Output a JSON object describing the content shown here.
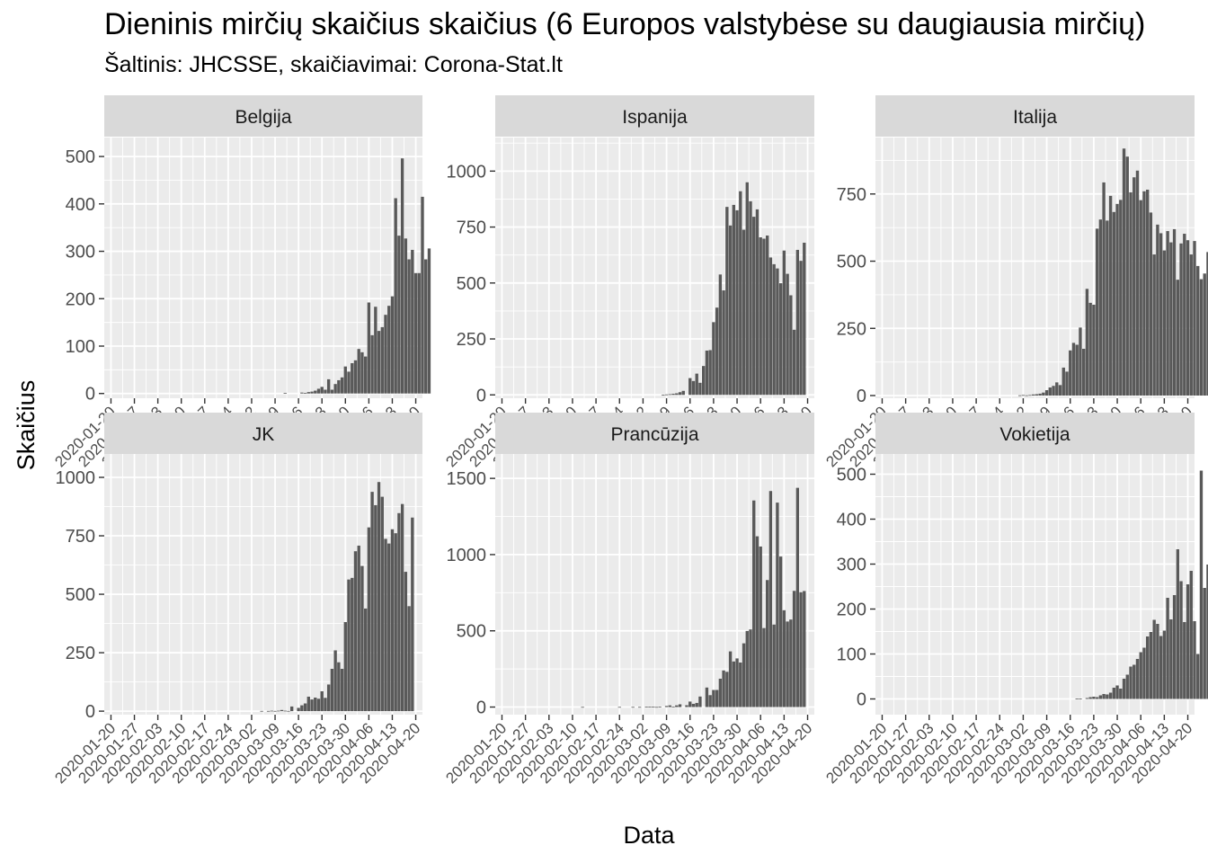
{
  "chart_data": {
    "type": "bar",
    "title": "Dieninis mirčių skaičius skaičius (6 Europos valstybėse su daugiausia mirčių)",
    "subtitle": "Šaltinis: JHCSSE, skaičiavimai: Corona-Stat.lt",
    "xlabel": "Data",
    "ylabel": "Skaičius",
    "x_range": [
      "2020-01-18",
      "2020-04-22"
    ],
    "x_ticks": [
      "2020-01-20",
      "2020-01-27",
      "2020-02-03",
      "2020-02-10",
      "2020-02-17",
      "2020-02-24",
      "2020-03-02",
      "2020-03-09",
      "2020-03-16",
      "2020-03-23",
      "2020-03-30",
      "2020-04-06",
      "2020-04-13",
      "2020-04-20"
    ],
    "bar_start": "2020-01-22",
    "bar_color": "#595959",
    "panel_background": "#ebebeb",
    "strip_background": "#d9d9d9",
    "grid": true,
    "panels": [
      {
        "name": "Belgija",
        "ylim": [
          -10,
          540
        ],
        "y_ticks": [
          0,
          100,
          200,
          300,
          400,
          500
        ],
        "values": [
          0,
          0,
          0,
          0,
          0,
          0,
          0,
          0,
          0,
          0,
          0,
          0,
          0,
          0,
          0,
          0,
          0,
          0,
          0,
          0,
          0,
          0,
          0,
          0,
          0,
          0,
          0,
          0,
          0,
          0,
          0,
          0,
          0,
          0,
          0,
          0,
          0,
          0,
          0,
          0,
          0,
          0,
          0,
          0,
          0,
          0,
          0,
          0,
          0,
          0,
          1,
          0,
          0,
          0,
          0,
          2,
          1,
          3,
          4,
          6,
          10,
          14,
          8,
          30,
          8,
          20,
          28,
          34,
          57,
          46,
          64,
          70,
          94,
          87,
          78,
          192,
          123,
          183,
          132,
          140,
          166,
          185,
          205,
          412,
          333,
          496,
          327,
          283,
          303,
          254,
          254,
          415,
          283,
          306
        ]
      },
      {
        "name": "Ispanija",
        "ylim": [
          -15,
          1150
        ],
        "y_ticks": [
          0,
          250,
          500,
          750,
          1000
        ],
        "values": [
          0,
          0,
          0,
          0,
          0,
          0,
          0,
          0,
          0,
          0,
          0,
          0,
          0,
          0,
          0,
          0,
          0,
          0,
          0,
          0,
          0,
          0,
          0,
          0,
          0,
          0,
          0,
          0,
          0,
          0,
          0,
          0,
          0,
          0,
          0,
          0,
          0,
          0,
          0,
          0,
          0,
          0,
          0,
          0,
          0,
          0,
          1,
          2,
          3,
          5,
          7,
          12,
          18,
          0,
          75,
          62,
          95,
          54,
          129,
          198,
          200,
          325,
          390,
          538,
          467,
          840,
          757,
          849,
          825,
          910,
          738,
          950,
          865,
          796,
          829,
          704,
          698,
          712,
          614,
          584,
          565,
          499,
          645,
          541,
          445,
          291,
          648,
          599,
          680
        ]
      },
      {
        "name": "Italija",
        "ylim": [
          -10,
          960
        ],
        "y_ticks": [
          0,
          250,
          500,
          750
        ],
        "values": [
          0,
          0,
          0,
          0,
          0,
          0,
          0,
          0,
          0,
          0,
          0,
          0,
          0,
          0,
          0,
          0,
          0,
          0,
          0,
          0,
          0,
          0,
          0,
          0,
          0,
          0,
          0,
          0,
          0,
          0,
          0,
          0,
          0,
          0,
          0,
          0,
          0,
          0,
          0,
          1,
          2,
          1,
          2,
          4,
          5,
          7,
          11,
          20,
          30,
          36,
          49,
          39,
          104,
          89,
          168,
          196,
          189,
          253,
          174,
          397,
          345,
          338,
          621,
          655,
          793,
          651,
          743,
          683,
          713,
          728,
          919,
          889,
          756,
          812,
          837,
          727,
          760,
          766,
          681,
          525,
          636,
          604,
          540,
          612,
          570,
          619,
          431,
          566,
          602,
          578,
          525,
          575,
          482,
          433,
          454,
          534
        ]
      },
      {
        "name": "JK",
        "ylim": [
          -15,
          1100
        ],
        "y_ticks": [
          0,
          250,
          500,
          750,
          1000
        ],
        "values": [
          0,
          0,
          0,
          0,
          0,
          0,
          0,
          0,
          0,
          0,
          0,
          0,
          0,
          0,
          0,
          0,
          0,
          0,
          0,
          0,
          0,
          0,
          0,
          0,
          0,
          0,
          0,
          0,
          0,
          0,
          0,
          0,
          0,
          0,
          0,
          0,
          0,
          0,
          0,
          0,
          0,
          0,
          0,
          1,
          0,
          1,
          2,
          1,
          2,
          5,
          2,
          1,
          20,
          0,
          14,
          25,
          33,
          62,
          50,
          58,
          53,
          85,
          57,
          114,
          181,
          260,
          209,
          181,
          381,
          563,
          570,
          684,
          708,
          621,
          439,
          786,
          938,
          881,
          980,
          917,
          737,
          717,
          778,
          761,
          847,
          886,
          596,
          449,
          828
        ]
      },
      {
        "name": "Prancūzija",
        "ylim": [
          -50,
          1660
        ],
        "y_ticks": [
          0,
          500,
          1000,
          1500
        ],
        "values": [
          0,
          0,
          0,
          0,
          0,
          0,
          0,
          0,
          0,
          0,
          0,
          0,
          0,
          0,
          0,
          0,
          0,
          0,
          0,
          0,
          0,
          0,
          1,
          0,
          0,
          0,
          0,
          0,
          0,
          0,
          0,
          0,
          0,
          1,
          0,
          0,
          0,
          1,
          0,
          1,
          0,
          2,
          3,
          2,
          1,
          3,
          0,
          7,
          11,
          3,
          11,
          18,
          0,
          12,
          36,
          21,
          27,
          69,
          0,
          128,
          78,
          112,
          112,
          186,
          240,
          231,
          365,
          299,
          319,
          292,
          418,
          499,
          509,
          1355,
          1120,
          1053,
          518,
          833,
          1417,
          541,
          1341,
          987,
          635,
          561,
          574,
          762,
          1438,
          753,
          761
        ]
      },
      {
        "name": "Vokietija",
        "ylim": [
          -35,
          545
        ],
        "y_ticks": [
          0,
          100,
          200,
          300,
          400,
          500
        ],
        "values": [
          0,
          0,
          0,
          0,
          0,
          0,
          0,
          0,
          0,
          0,
          0,
          0,
          0,
          0,
          0,
          0,
          0,
          0,
          0,
          0,
          0,
          0,
          0,
          0,
          0,
          0,
          0,
          0,
          0,
          0,
          0,
          0,
          0,
          0,
          0,
          0,
          0,
          0,
          0,
          0,
          0,
          0,
          0,
          0,
          0,
          0,
          0,
          0,
          0,
          0,
          0,
          0,
          0,
          0,
          0,
          0,
          1,
          1,
          0,
          2,
          4,
          5,
          4,
          8,
          11,
          10,
          14,
          25,
          30,
          23,
          45,
          54,
          72,
          76,
          89,
          104,
          114,
          139,
          149,
          176,
          167,
          140,
          152,
          225,
          177,
          231,
          333,
          262,
          171,
          255,
          285,
          173,
          100,
          508,
          247,
          299
        ]
      }
    ]
  }
}
